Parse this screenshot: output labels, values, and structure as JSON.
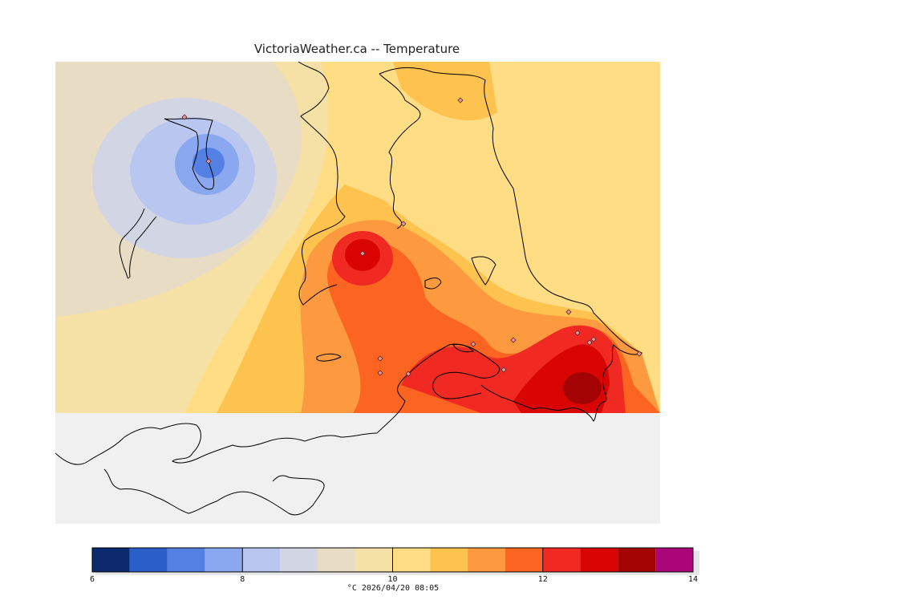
{
  "title": "VictoriaWeather.ca -- Temperature",
  "legend": {
    "unit": "°C",
    "timestamp": "2026/04/20 08:05",
    "caption": "°C  2026/04/20 08:05",
    "min": 6,
    "max": 14,
    "tick_values": [
      6,
      8,
      10,
      12,
      14
    ],
    "tick_labels": [
      "6",
      "8",
      "10",
      "12",
      "14"
    ],
    "bins": [
      {
        "from": 6.0,
        "to": 6.5,
        "color": "#0d2a6e"
      },
      {
        "from": 6.5,
        "to": 7.0,
        "color": "#2b5fc8"
      },
      {
        "from": 7.0,
        "to": 7.5,
        "color": "#5480e4"
      },
      {
        "from": 7.5,
        "to": 8.0,
        "color": "#8aa8ef"
      },
      {
        "from": 8.0,
        "to": 8.5,
        "color": "#b9c6f0"
      },
      {
        "from": 8.5,
        "to": 9.0,
        "color": "#d2d6e4"
      },
      {
        "from": 9.0,
        "to": 9.5,
        "color": "#e8dcc4"
      },
      {
        "from": 9.5,
        "to": 10.0,
        "color": "#f5e0a6"
      },
      {
        "from": 10.0,
        "to": 10.5,
        "color": "#fedd84"
      },
      {
        "from": 10.5,
        "to": 11.0,
        "color": "#fec24e"
      },
      {
        "from": 11.0,
        "to": 11.5,
        "color": "#fd9a40"
      },
      {
        "from": 11.5,
        "to": 12.0,
        "color": "#fb6421"
      },
      {
        "from": 12.0,
        "to": 12.5,
        "color": "#f02a23"
      },
      {
        "from": 12.5,
        "to": 13.0,
        "color": "#d90505"
      },
      {
        "from": 13.0,
        "to": 13.5,
        "color": "#a30303"
      },
      {
        "from": 13.5,
        "to": 14.0,
        "color": "#aa0579"
      }
    ]
  },
  "map": {
    "water_color": "#f0f0f0",
    "land_outline_color": "#000000",
    "station_marker": "diamond"
  }
}
